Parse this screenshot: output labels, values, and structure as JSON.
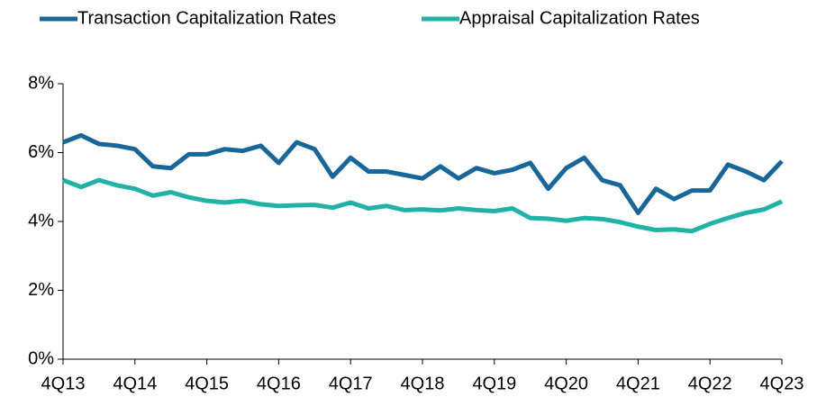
{
  "chart_data": {
    "type": "line",
    "categories": [
      "4Q13",
      null,
      null,
      null,
      "4Q14",
      null,
      null,
      null,
      "4Q15",
      null,
      null,
      null,
      "4Q16",
      null,
      null,
      null,
      "4Q17",
      null,
      null,
      null,
      "4Q18",
      null,
      null,
      null,
      "4Q19",
      null,
      null,
      null,
      "4Q20",
      null,
      null,
      null,
      "4Q21",
      null,
      null,
      null,
      "4Q22",
      null,
      null,
      null,
      "4Q23"
    ],
    "series": [
      {
        "name": "Transaction Capitalization Rates",
        "color": "#17679a",
        "values": [
          6.3,
          6.5,
          6.25,
          6.2,
          6.1,
          5.6,
          5.55,
          5.95,
          5.95,
          6.1,
          6.05,
          6.2,
          5.7,
          6.3,
          6.1,
          5.3,
          5.85,
          5.45,
          5.45,
          5.35,
          5.25,
          5.6,
          5.25,
          5.55,
          5.4,
          5.5,
          5.7,
          4.95,
          5.55,
          5.85,
          5.2,
          5.05,
          4.25,
          4.95,
          4.65,
          4.9,
          4.9,
          5.65,
          5.45,
          5.2,
          5.75
        ]
      },
      {
        "name": "Appraisal Capitalization Rates",
        "color": "#20b2a4",
        "values": [
          5.2,
          5.0,
          5.2,
          5.05,
          4.95,
          4.75,
          4.85,
          4.7,
          4.6,
          4.55,
          4.6,
          4.5,
          4.45,
          4.47,
          4.48,
          4.4,
          4.55,
          4.38,
          4.45,
          4.33,
          4.35,
          4.32,
          4.38,
          4.33,
          4.3,
          4.38,
          4.1,
          4.08,
          4.02,
          4.1,
          4.07,
          3.98,
          3.85,
          3.75,
          3.77,
          3.72,
          3.93,
          4.1,
          4.25,
          4.35,
          4.58
        ]
      }
    ],
    "ylim": [
      0,
      8
    ],
    "yticks": [
      {
        "value": 0,
        "label": "0%"
      },
      {
        "value": 2,
        "label": "2%"
      },
      {
        "value": 4,
        "label": "4%"
      },
      {
        "value": 6,
        "label": "6%"
      },
      {
        "value": 8,
        "label": "8%"
      }
    ],
    "legend": "top"
  }
}
